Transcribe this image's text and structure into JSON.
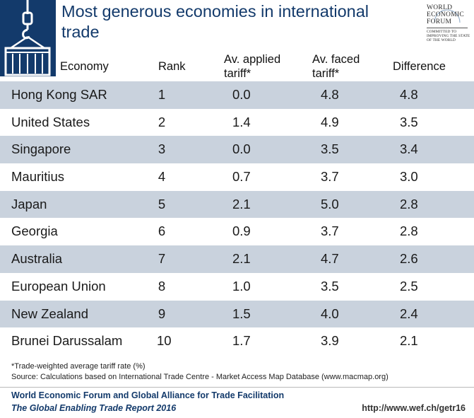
{
  "title": "Most generous economies in international trade",
  "publisher_logo": {
    "line1": "WORLD",
    "line2": "ECONOMIC",
    "line3": "FORUM",
    "tagline1": "COMMITTED TO",
    "tagline2": "IMPROVING THE STATE",
    "tagline3": "OF THE WORLD"
  },
  "icon": "crane-lifting-container-icon",
  "colors": {
    "brand": "#133a6b",
    "row_shade": "#c9d2dd"
  },
  "chart_data": {
    "type": "table",
    "columns": [
      "Economy",
      "Rank",
      "Av. applied tariff*",
      "Av. faced tariff*",
      "Difference"
    ],
    "rows": [
      {
        "economy": "Hong Kong SAR",
        "rank": "1",
        "applied": "0.0",
        "faced": "4.8",
        "difference": "4.8"
      },
      {
        "economy": "United States",
        "rank": "2",
        "applied": "1.4",
        "faced": "4.9",
        "difference": "3.5"
      },
      {
        "economy": "Singapore",
        "rank": "3",
        "applied": "0.0",
        "faced": "3.5",
        "difference": "3.4"
      },
      {
        "economy": "Mauritius",
        "rank": "4",
        "applied": "0.7",
        "faced": "3.7",
        "difference": "3.0"
      },
      {
        "economy": "Japan",
        "rank": "5",
        "applied": "2.1",
        "faced": "5.0",
        "difference": "2.8"
      },
      {
        "economy": "Georgia",
        "rank": "6",
        "applied": "0.9",
        "faced": "3.7",
        "difference": "2.8"
      },
      {
        "economy": "Australia",
        "rank": "7",
        "applied": "2.1",
        "faced": "4.7",
        "difference": "2.6"
      },
      {
        "economy": "European Union",
        "rank": "8",
        "applied": "1.0",
        "faced": "3.5",
        "difference": "2.5"
      },
      {
        "economy": "New Zealand",
        "rank": "9",
        "applied": "1.5",
        "faced": "4.0",
        "difference": "2.4"
      },
      {
        "economy": "Brunei Darussalam",
        "rank": "10",
        "applied": "1.7",
        "faced": "3.9",
        "difference": "2.1"
      }
    ]
  },
  "notes": {
    "footnote": "*Trade-weighted average tariff rate (%)",
    "source": "Source: Calculations based on International Trade Centre - Market Access Map Database (www.macmap.org)"
  },
  "footer": {
    "line1": "World Economic Forum and Global Alliance for Trade Facilitation",
    "line2": "The Global Enabling Trade Report 2016",
    "url": "http://www.wef.ch/getr16"
  }
}
